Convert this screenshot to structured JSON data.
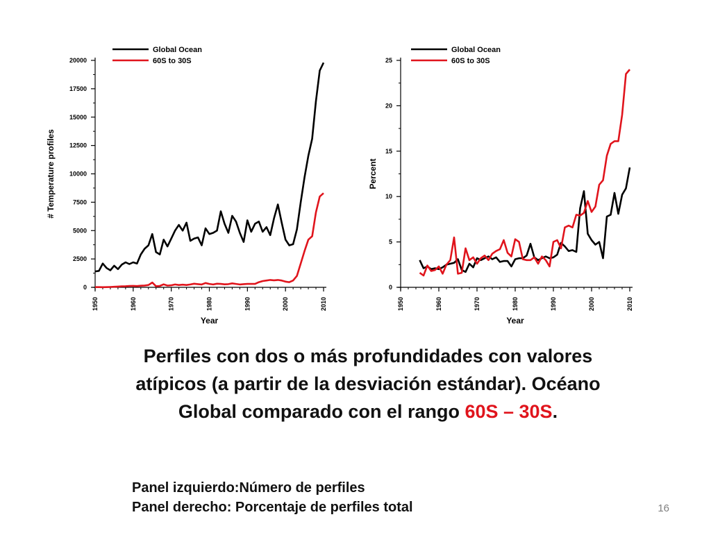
{
  "slide": {
    "caption_main": "Perfiles con dos o más profundidades con valores atípicos (a partir de la desviación estándar). Océano Global comparado con el rango ",
    "caption_range": "60S – 30S",
    "caption_end": ".",
    "panel_left_note": "Panel izquierdo:Número de perfiles",
    "panel_right_note": "Panel derecho: Porcentaje de perfiles total",
    "slide_number": "16"
  },
  "colors": {
    "global": "#000000",
    "band": "#e0141c",
    "accent": "#e0141c"
  },
  "chart_data": [
    {
      "type": "line",
      "xlabel": "Year",
      "ylabel": "# Temperature profiles",
      "xlim": [
        1950,
        2010
      ],
      "ylim": [
        0,
        20000
      ],
      "xticks": [
        1950,
        1960,
        1970,
        1980,
        1990,
        2000,
        2010
      ],
      "yticks": [
        0,
        2500,
        5000,
        7500,
        10000,
        12500,
        15000,
        17500,
        20000
      ],
      "legend_position": "top-left",
      "series": [
        {
          "name": "Global Ocean",
          "color": "#000000",
          "x": [
            1950,
            1951,
            1952,
            1953,
            1954,
            1955,
            1956,
            1957,
            1958,
            1959,
            1960,
            1961,
            1962,
            1963,
            1964,
            1965,
            1966,
            1967,
            1968,
            1969,
            1970,
            1971,
            1972,
            1973,
            1974,
            1975,
            1976,
            1977,
            1978,
            1979,
            1980,
            1981,
            1982,
            1983,
            1984,
            1985,
            1986,
            1987,
            1988,
            1989,
            1990,
            1991,
            1992,
            1993,
            1994,
            1995,
            1996,
            1997,
            1998,
            1999,
            2000,
            2001,
            2002,
            2003,
            2004,
            2005,
            2006,
            2007,
            2008,
            2009,
            2010
          ],
          "y": [
            1400,
            1450,
            2100,
            1700,
            1500,
            1900,
            1600,
            2000,
            2200,
            2050,
            2200,
            2100,
            2900,
            3400,
            3700,
            4700,
            3100,
            2900,
            4200,
            3600,
            4300,
            5000,
            5500,
            5000,
            5700,
            4100,
            4300,
            4400,
            3700,
            5200,
            4700,
            4800,
            5000,
            6700,
            5600,
            4800,
            6300,
            5800,
            4800,
            4000,
            5900,
            4900,
            5600,
            5800,
            4900,
            5300,
            4600,
            6100,
            7300,
            5700,
            4200,
            3700,
            3800,
            5100,
            7500,
            9700,
            11600,
            13100,
            16400,
            19100,
            19800
          ]
        },
        {
          "name": "60S to 30S",
          "color": "#e0141c",
          "x": [
            1950,
            1951,
            1952,
            1953,
            1954,
            1955,
            1956,
            1957,
            1958,
            1959,
            1960,
            1961,
            1962,
            1963,
            1964,
            1965,
            1966,
            1967,
            1968,
            1969,
            1970,
            1971,
            1972,
            1973,
            1974,
            1975,
            1976,
            1977,
            1978,
            1979,
            1980,
            1981,
            1982,
            1983,
            1984,
            1985,
            1986,
            1987,
            1988,
            1989,
            1990,
            1991,
            1992,
            1993,
            1994,
            1995,
            1996,
            1997,
            1998,
            1999,
            2000,
            2001,
            2002,
            2003,
            2004,
            2005,
            2006,
            2007,
            2008,
            2009,
            2010
          ],
          "y": [
            20,
            20,
            10,
            20,
            30,
            50,
            70,
            90,
            100,
            120,
            130,
            110,
            140,
            160,
            200,
            420,
            100,
            120,
            260,
            150,
            180,
            250,
            200,
            230,
            200,
            250,
            320,
            280,
            250,
            380,
            300,
            250,
            320,
            300,
            260,
            280,
            350,
            300,
            250,
            280,
            300,
            300,
            300,
            450,
            550,
            600,
            650,
            620,
            650,
            600,
            500,
            450,
            600,
            1000,
            2100,
            3200,
            4200,
            4500,
            6600,
            8000,
            8300
          ]
        }
      ]
    },
    {
      "type": "line",
      "xlabel": "Year",
      "ylabel": "Percent",
      "xlim": [
        1950,
        2010
      ],
      "ylim": [
        0,
        25
      ],
      "xticks": [
        1950,
        1960,
        1970,
        1980,
        1990,
        2000,
        2010
      ],
      "yticks": [
        0,
        5,
        10,
        15,
        20,
        25
      ],
      "legend_position": "top-left",
      "series": [
        {
          "name": "Global Ocean",
          "color": "#000000",
          "x": [
            1955,
            1956,
            1957,
            1958,
            1959,
            1960,
            1961,
            1962,
            1963,
            1964,
            1965,
            1966,
            1967,
            1968,
            1969,
            1970,
            1971,
            1972,
            1973,
            1974,
            1975,
            1976,
            1977,
            1978,
            1979,
            1980,
            1981,
            1982,
            1983,
            1984,
            1985,
            1986,
            1987,
            1988,
            1989,
            1990,
            1991,
            1992,
            1993,
            1994,
            1995,
            1996,
            1997,
            1998,
            1999,
            2000,
            2001,
            2002,
            2003,
            2004,
            2005,
            2006,
            2007,
            2008,
            2009,
            2010
          ],
          "y": [
            3.0,
            2.1,
            2.3,
            2.0,
            2.1,
            2.0,
            2.2,
            2.5,
            2.6,
            2.7,
            3.1,
            1.9,
            1.7,
            2.6,
            2.2,
            3.2,
            3.0,
            3.2,
            3.4,
            3.1,
            3.3,
            2.8,
            2.9,
            2.9,
            2.3,
            3.1,
            3.2,
            3.2,
            3.5,
            4.8,
            3.3,
            3.0,
            3.2,
            3.4,
            3.2,
            3.3,
            3.6,
            4.9,
            4.5,
            4.0,
            4.1,
            3.9,
            8.7,
            10.6,
            5.9,
            5.2,
            4.7,
            5.0,
            3.2,
            7.8,
            8.0,
            10.4,
            8.1,
            10.2,
            10.9,
            13.2
          ]
        },
        {
          "name": "60S to 30S",
          "color": "#e0141c",
          "x": [
            1955,
            1956,
            1957,
            1958,
            1959,
            1960,
            1961,
            1962,
            1963,
            1964,
            1965,
            1966,
            1967,
            1968,
            1969,
            1970,
            1971,
            1972,
            1973,
            1974,
            1975,
            1976,
            1977,
            1978,
            1979,
            1980,
            1981,
            1982,
            1983,
            1984,
            1985,
            1986,
            1987,
            1988,
            1989,
            1990,
            1991,
            1992,
            1993,
            1994,
            1995,
            1996,
            1997,
            1998,
            1999,
            2000,
            2001,
            2002,
            2003,
            2004,
            2005,
            2006,
            2007,
            2008,
            2009,
            2010
          ],
          "y": [
            1.6,
            1.3,
            2.4,
            1.8,
            1.9,
            2.3,
            1.5,
            2.5,
            3.0,
            5.5,
            1.5,
            1.6,
            4.3,
            3.0,
            3.3,
            2.6,
            3.2,
            3.5,
            3.0,
            3.7,
            4.0,
            4.2,
            5.2,
            3.8,
            3.4,
            5.3,
            5.0,
            3.1,
            3.0,
            3.0,
            3.3,
            2.6,
            3.4,
            3.0,
            2.3,
            5.0,
            5.2,
            4.3,
            6.6,
            6.8,
            6.6,
            8.0,
            7.9,
            8.2,
            9.5,
            8.3,
            8.9,
            11.3,
            11.8,
            14.5,
            15.8,
            16.1,
            16.1,
            19.0,
            23.5,
            24.0
          ]
        }
      ]
    }
  ]
}
